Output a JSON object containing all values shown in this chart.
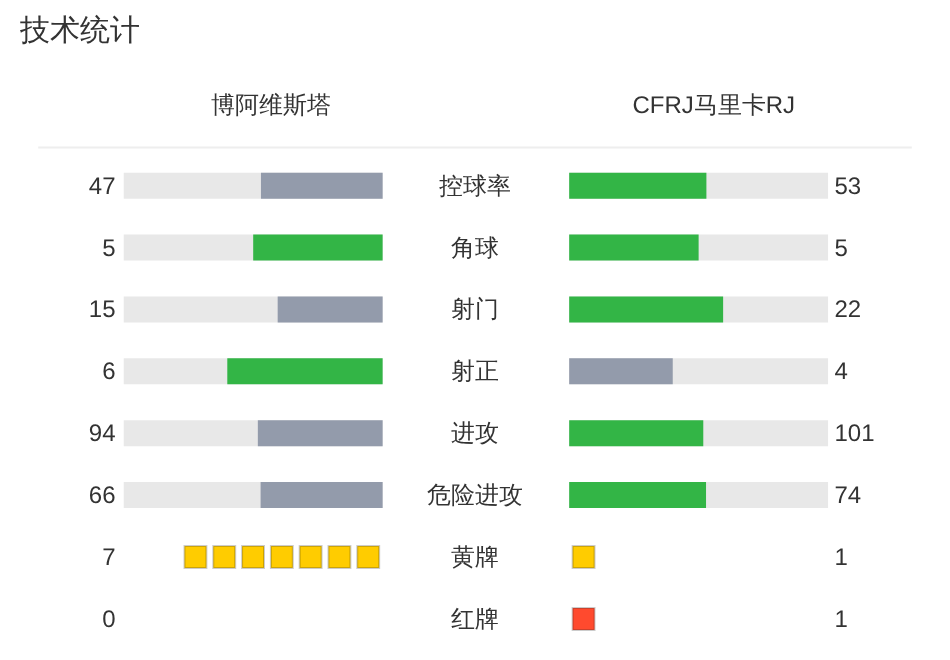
{
  "chart_data": [
    {
      "type": "other",
      "title": "技术统计",
      "data_labels": true,
      "categories": [
        "控球率",
        "角球",
        "射门",
        "射正",
        "进攻",
        "危险进攻"
      ],
      "series": [
        {
          "name": "博阿维斯塔",
          "values": [
            47,
            5,
            15,
            6,
            94,
            66
          ],
          "colors": [
            "#939bab",
            "#33b546",
            "#939bab",
            "#33b546",
            "#939bab",
            "#939bab"
          ]
        },
        {
          "name": "CFRJ马里卡RJ",
          "values": [
            53,
            5,
            22,
            4,
            101,
            74
          ],
          "colors": [
            "#33b546",
            "#33b546",
            "#33b546",
            "#939bab",
            "#33b546",
            "#33b546"
          ]
        }
      ]
    },
    {
      "type": "other",
      "data_labels": true,
      "categories": [
        "黄牌",
        "红牌"
      ],
      "series": [
        {
          "values": [
            7,
            0
          ],
          "colors": [
            "#ffcc00",
            "#ff4a2e"
          ]
        },
        {
          "values": [
            1,
            1
          ],
          "colors": [
            "#ffcc00",
            "#ff4a2e"
          ]
        }
      ]
    }
  ]
}
